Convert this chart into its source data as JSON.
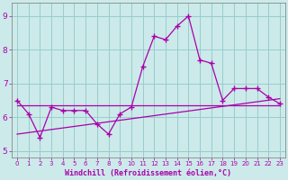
{
  "xlabel": "Windchill (Refroidissement éolien,°C)",
  "bg_color": "#cceaea",
  "grid_color": "#99cccc",
  "line_color": "#aa00aa",
  "hours": [
    0,
    1,
    2,
    3,
    4,
    5,
    6,
    7,
    8,
    9,
    10,
    11,
    12,
    13,
    14,
    15,
    16,
    17,
    18,
    19,
    20,
    21,
    22,
    23
  ],
  "windchill": [
    6.5,
    6.1,
    5.4,
    6.3,
    6.2,
    6.2,
    6.2,
    5.8,
    5.5,
    6.1,
    6.3,
    7.5,
    8.4,
    8.3,
    8.7,
    9.0,
    7.7,
    7.6,
    6.5,
    6.85,
    6.85,
    6.85,
    6.6,
    6.4
  ],
  "ylim": [
    4.8,
    9.4
  ],
  "xlim": [
    -0.5,
    23.5
  ],
  "flat_line_y": 6.35,
  "rising_line_start": 5.5,
  "rising_line_end": 6.55
}
